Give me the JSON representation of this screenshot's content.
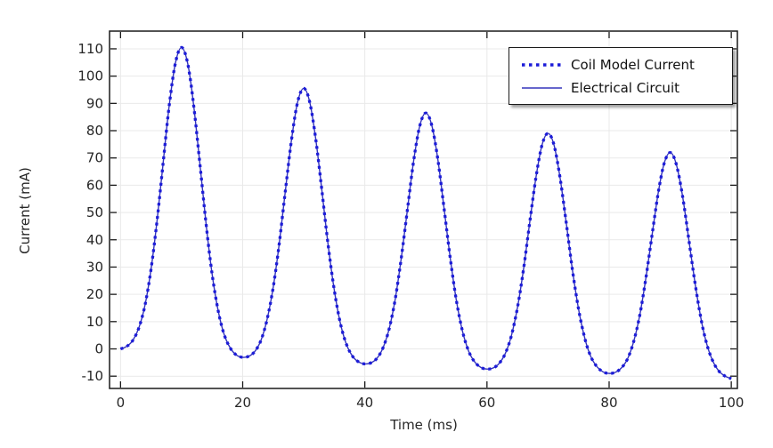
{
  "figure": {
    "background": "#ffffff",
    "border_color": "#1a1a1a",
    "text_color": "#262626"
  },
  "chart_data": {
    "type": "line",
    "title": "",
    "xlabel": "Time (ms)",
    "ylabel": "Current (mA)",
    "xlim": [
      -1.8,
      101
    ],
    "ylim": [
      -14.5,
      116.5
    ],
    "xticks": [
      0,
      20,
      40,
      60,
      80,
      100
    ],
    "yticks": [
      -10,
      0,
      10,
      20,
      30,
      40,
      50,
      60,
      70,
      80,
      90,
      100,
      110
    ],
    "grid": true,
    "grid_color": "#e9e9e9",
    "legend_position": "top-right",
    "x": [
      0,
      1,
      2,
      3,
      4,
      5,
      6,
      7,
      8,
      9,
      10,
      11,
      12,
      13,
      14,
      15,
      16,
      17,
      18,
      19,
      20,
      21,
      22,
      23,
      24,
      25,
      26,
      27,
      28,
      29,
      30,
      31,
      32,
      33,
      34,
      35,
      36,
      37,
      38,
      39,
      40,
      41,
      42,
      43,
      44,
      45,
      46,
      47,
      48,
      49,
      50,
      51,
      52,
      53,
      54,
      55,
      56,
      57,
      58,
      59,
      60,
      61,
      62,
      63,
      64,
      65,
      66,
      67,
      68,
      69,
      70,
      71,
      72,
      73,
      74,
      75,
      76,
      77,
      78,
      79,
      80,
      81,
      82,
      83,
      84,
      85,
      86,
      87,
      88,
      89,
      90,
      91,
      92,
      93,
      94,
      95,
      96,
      97,
      98,
      99,
      100
    ],
    "series": [
      {
        "name": "Coil Model Current",
        "style": "dotted",
        "color": "#1c1cd8",
        "values": [
          0.0,
          0.9,
          3.1,
          7.7,
          16.0,
          29.2,
          47.4,
          68.8,
          89.7,
          105.0,
          110.5,
          104.6,
          88.9,
          67.7,
          45.9,
          27.4,
          13.8,
          5.1,
          0.2,
          -2.3,
          -3.1,
          -2.7,
          -0.9,
          3.2,
          10.8,
          22.6,
          38.9,
          58.1,
          76.8,
          90.5,
          95.5,
          90.3,
          76.3,
          57.4,
          38.0,
          21.5,
          9.4,
          1.6,
          -2.7,
          -4.8,
          -5.5,
          -5.1,
          -3.4,
          0.5,
          7.5,
          18.6,
          33.8,
          51.6,
          69.0,
          81.8,
          86.5,
          81.6,
          68.7,
          51.1,
          33.0,
          17.7,
          6.4,
          -0.8,
          -4.8,
          -6.8,
          -7.4,
          -7.0,
          -5.3,
          -1.7,
          4.9,
          15.2,
          29.5,
          46.3,
          62.6,
          74.6,
          79.0,
          74.5,
          62.3,
          45.8,
          28.9,
          14.5,
          4.0,
          -2.8,
          -6.5,
          -8.4,
          -9.0,
          -8.6,
          -7.0,
          -3.7,
          2.5,
          12.2,
          25.6,
          41.3,
          56.6,
          67.9,
          72.0,
          67.7,
          56.3,
          40.9,
          25.1,
          11.5,
          1.7,
          -4.6,
          -8.2,
          -10.0,
          -10.9
        ]
      },
      {
        "name": "Electrical Circuit",
        "style": "solid",
        "color": "#3333bb",
        "values": [
          0.0,
          0.9,
          3.1,
          7.7,
          16.0,
          29.2,
          47.4,
          68.8,
          89.7,
          105.0,
          110.5,
          104.6,
          88.9,
          67.7,
          45.9,
          27.4,
          13.8,
          5.1,
          0.2,
          -2.3,
          -3.1,
          -2.7,
          -0.9,
          3.2,
          10.8,
          22.6,
          38.9,
          58.1,
          76.8,
          90.5,
          95.5,
          90.3,
          76.3,
          57.4,
          38.0,
          21.5,
          9.4,
          1.6,
          -2.7,
          -4.8,
          -5.5,
          -5.1,
          -3.4,
          0.5,
          7.5,
          18.6,
          33.8,
          51.6,
          69.0,
          81.8,
          86.5,
          81.6,
          68.7,
          51.1,
          33.0,
          17.7,
          6.4,
          -0.8,
          -4.8,
          -6.8,
          -7.4,
          -7.0,
          -5.3,
          -1.7,
          4.9,
          15.2,
          29.5,
          46.3,
          62.6,
          74.6,
          79.0,
          74.5,
          62.3,
          45.8,
          28.9,
          14.5,
          4.0,
          -2.8,
          -6.5,
          -8.4,
          -9.0,
          -8.6,
          -7.0,
          -3.7,
          2.5,
          12.2,
          25.6,
          41.3,
          56.6,
          67.9,
          72.0,
          67.7,
          56.3,
          40.9,
          25.1,
          11.5,
          1.7,
          -4.6,
          -8.2,
          -10.0,
          -10.9
        ]
      }
    ],
    "peaks": {
      "t": [
        10,
        30,
        50,
        70,
        90
      ],
      "current_mA": [
        110.5,
        95.5,
        86.5,
        79.0,
        72.0
      ]
    },
    "troughs": {
      "t": [
        20,
        40,
        60,
        80,
        100
      ],
      "current_mA": [
        -3.1,
        -5.5,
        -7.4,
        -9.0,
        -10.9
      ]
    }
  }
}
